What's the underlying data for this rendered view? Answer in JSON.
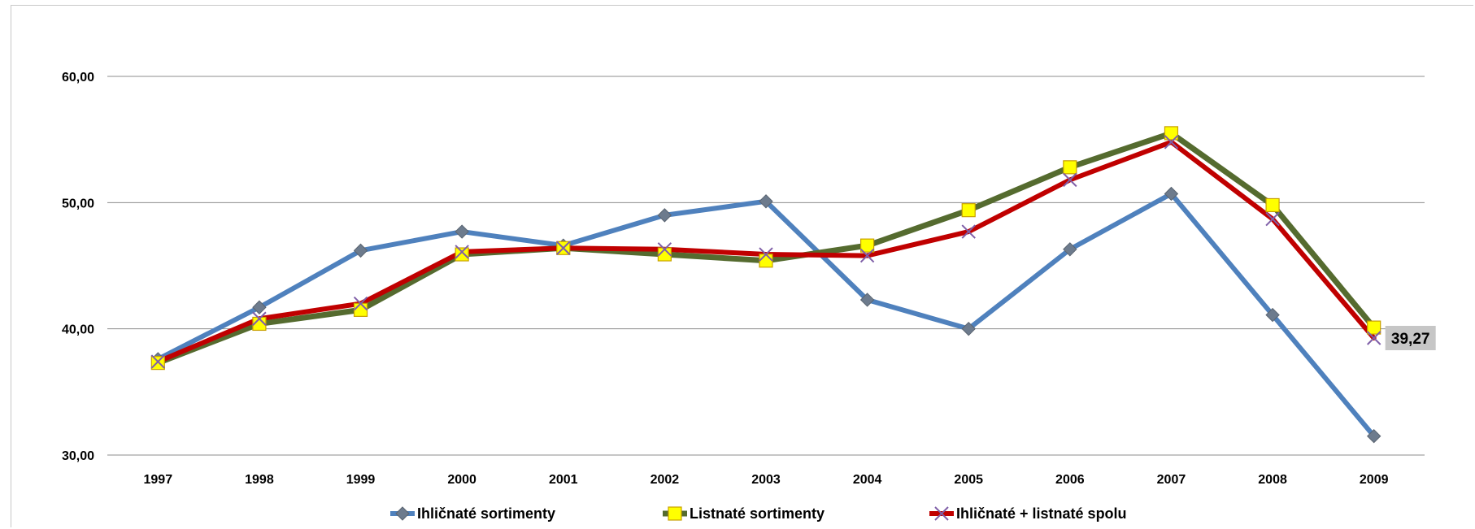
{
  "chart_data": {
    "type": "line",
    "title": "",
    "xlabel": "",
    "ylabel": "",
    "categories": [
      "1997",
      "1998",
      "1999",
      "2000",
      "2001",
      "2002",
      "2003",
      "2004",
      "2005",
      "2006",
      "2007",
      "2008",
      "2009"
    ],
    "ylim": [
      30,
      60
    ],
    "yticks": [
      "30,00",
      "40,00",
      "50,00",
      "60,00"
    ],
    "grid": true,
    "legend_position": "bottom",
    "series": [
      {
        "name": "Ihličnaté sortimenty",
        "color": "#4F81BD",
        "marker": "diamond",
        "marker_color": "#6D7B8D",
        "values": [
          37.6,
          41.7,
          46.2,
          47.7,
          46.6,
          49.0,
          50.1,
          42.3,
          40.0,
          46.3,
          50.7,
          41.1,
          31.5
        ]
      },
      {
        "name": "Listnaté sortimenty",
        "color": "#556B2F",
        "marker": "square",
        "marker_color": "#FFFF00",
        "values": [
          37.3,
          40.4,
          41.5,
          45.9,
          46.4,
          45.9,
          45.4,
          46.6,
          49.4,
          52.8,
          55.5,
          49.8,
          40.1
        ]
      },
      {
        "name": "Ihličnaté + listnaté spolu",
        "color": "#C00000",
        "marker": "x",
        "marker_color": "#7F5FA8",
        "values": [
          37.4,
          40.8,
          42.0,
          46.1,
          46.4,
          46.3,
          45.9,
          45.8,
          47.7,
          51.8,
          54.8,
          48.7,
          39.27
        ]
      }
    ],
    "annotations": [
      {
        "series": 2,
        "index": 12,
        "text": "39,27"
      }
    ]
  }
}
